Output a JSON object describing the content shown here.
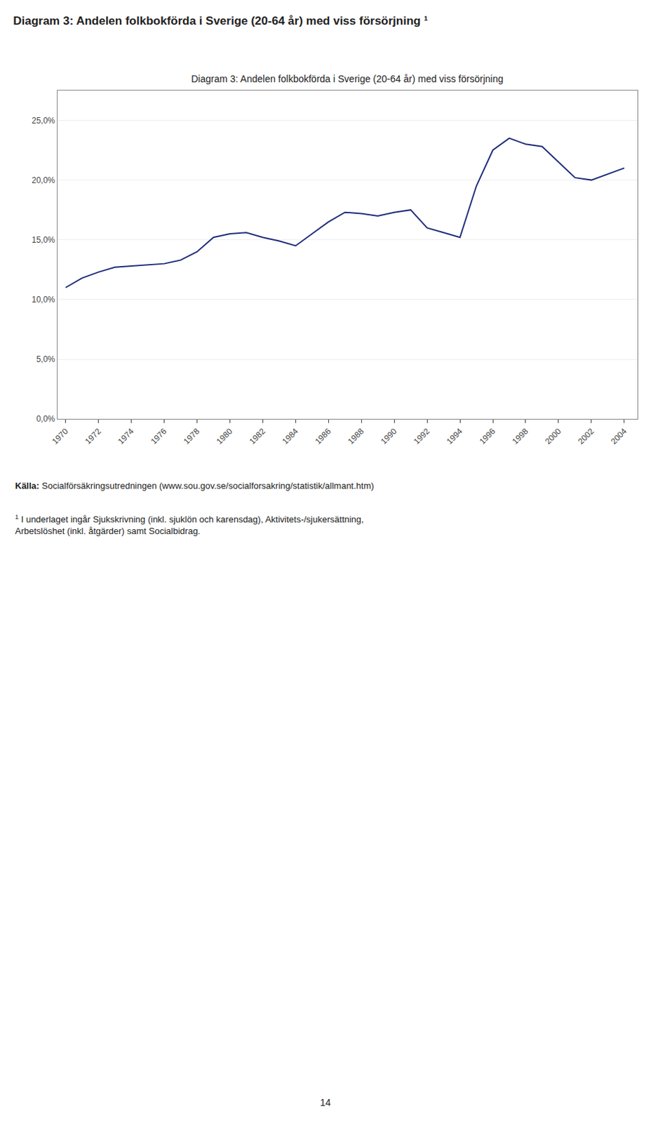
{
  "chart_data": {
    "type": "line",
    "title": "Diagram 3: Andelen folkbokförda i Sverige (20-64 år) med viss försörjning ¹",
    "subtitle": "Diagram 3: Andelen folkbokförda i Sverige (20-64 år) med viss försörjning",
    "annotations": [
      "Källa:",
      " Socialförsäkringsutredningen (www.sou.gov.se/socialforsakring/statistik/allmant.htm)",
      "1",
      " I underlaget ingår Sjukskrivning (inkl. sjuklön och karensdag), Aktivitets-/sjukersättning,\nArbetslöshet (inkl. åtgärder) samt Socialbidrag.",
      "14"
    ],
    "x": [
      1970,
      1971,
      1972,
      1973,
      1974,
      1975,
      1976,
      1977,
      1978,
      1979,
      1980,
      1981,
      1982,
      1983,
      1984,
      1985,
      1986,
      1987,
      1988,
      1989,
      1990,
      1991,
      1992,
      1993,
      1994,
      1995,
      1996,
      1997,
      1998,
      1999,
      2000,
      2001,
      2002,
      2003,
      2004
    ],
    "values": [
      11.0,
      11.8,
      12.3,
      12.7,
      12.8,
      12.9,
      13.0,
      13.3,
      14.0,
      15.2,
      15.5,
      15.6,
      15.2,
      14.9,
      14.5,
      15.5,
      16.5,
      17.3,
      17.2,
      17.0,
      17.3,
      17.5,
      16.0,
      15.6,
      15.2,
      19.5,
      22.5,
      23.5,
      23.0,
      22.8,
      21.5,
      20.2,
      20.0,
      20.5,
      21.0
    ],
    "color": "#1F2D7B",
    "xlim": [
      1969.5,
      2004.8
    ],
    "xticks": [
      1970,
      1972,
      1974,
      1976,
      1978,
      1980,
      1982,
      1984,
      1986,
      1988,
      1990,
      1992,
      1994,
      1996,
      1998,
      2000,
      2002,
      2004
    ],
    "ylim": [
      0.0,
      27.5
    ],
    "yticks": [
      {
        "value": 0.0,
        "label": "0,0%"
      },
      {
        "value": 5.0,
        "label": "5,0%"
      },
      {
        "value": 10.0,
        "label": "10,0%"
      },
      {
        "value": 15.0,
        "label": "15,0%"
      },
      {
        "value": 20.0,
        "label": "20,0%"
      },
      {
        "value": 25.0,
        "label": "25,0%"
      }
    ],
    "grid": "y"
  }
}
